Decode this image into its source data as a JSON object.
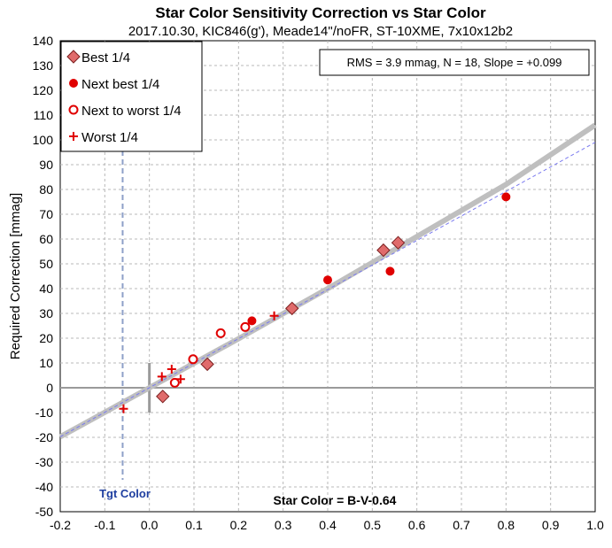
{
  "chart_data": {
    "type": "scatter",
    "title": "Star Color Sensitivity Correction vs Star Color",
    "subtitle": "2017.10.30, KIC846(g'), Meade14\"/noFR, ST-10XME, 7x10x12b2",
    "xlabel": "Star Color = B-V-0.64",
    "ylabel": "Required Correction [mmag]",
    "xlim": [
      -0.2,
      1.0
    ],
    "ylim": [
      -50,
      140
    ],
    "x_ticks": [
      "-0.2",
      "-0.1",
      "0.0",
      "0.1",
      "0.2",
      "0.3",
      "0.4",
      "0.5",
      "0.6",
      "0.7",
      "0.8",
      "0.9",
      "1.0"
    ],
    "y_ticks": [
      "-50",
      "-40",
      "-30",
      "-20",
      "-10",
      "0",
      "10",
      "20",
      "30",
      "40",
      "50",
      "60",
      "70",
      "80",
      "90",
      "100",
      "110",
      "120",
      "130",
      "140"
    ],
    "grid": true,
    "stats_box": "RMS = 3.9 mmag, N = 18, Slope = +0.099",
    "target_label": "Tgt Color",
    "target_x": -0.06,
    "legend_position": "top-left",
    "series": [
      {
        "name": "Best 1/4",
        "marker": "diamond",
        "color": "#e06b6b",
        "points": [
          [
            0.03,
            -3.5
          ],
          [
            0.13,
            9.5
          ],
          [
            0.32,
            32
          ],
          [
            0.525,
            55.5
          ],
          [
            0.558,
            58.5
          ]
        ]
      },
      {
        "name": "Next best 1/4",
        "marker": "dot",
        "color": "#e00000",
        "points": [
          [
            0.23,
            27
          ],
          [
            0.4,
            43.5
          ],
          [
            0.54,
            47
          ],
          [
            0.8,
            77
          ]
        ]
      },
      {
        "name": "Next to worst 1/4",
        "marker": "circle",
        "color": "#e00000",
        "points": [
          [
            0.057,
            2
          ],
          [
            0.098,
            11.5
          ],
          [
            0.16,
            22
          ],
          [
            0.215,
            24.5
          ]
        ]
      },
      {
        "name": "Worst 1/4",
        "marker": "plus",
        "color": "#e00000",
        "points": [
          [
            -0.058,
            -8.5
          ],
          [
            0.028,
            4.5
          ],
          [
            0.05,
            7.5
          ],
          [
            0.07,
            3.5
          ],
          [
            0.28,
            29
          ]
        ]
      }
    ],
    "fit_curve": {
      "color": "#bfbfbf",
      "points": [
        [
          -0.2,
          -19.8
        ],
        [
          0.0,
          0
        ],
        [
          0.2,
          19.8
        ],
        [
          0.4,
          40.0
        ],
        [
          0.6,
          61.0
        ],
        [
          0.8,
          82.0
        ],
        [
          1.0,
          106.0
        ]
      ]
    },
    "linear_fit": {
      "color": "#7a7af0",
      "points": [
        [
          -0.2,
          -19.8
        ],
        [
          1.0,
          99.0
        ]
      ]
    }
  }
}
